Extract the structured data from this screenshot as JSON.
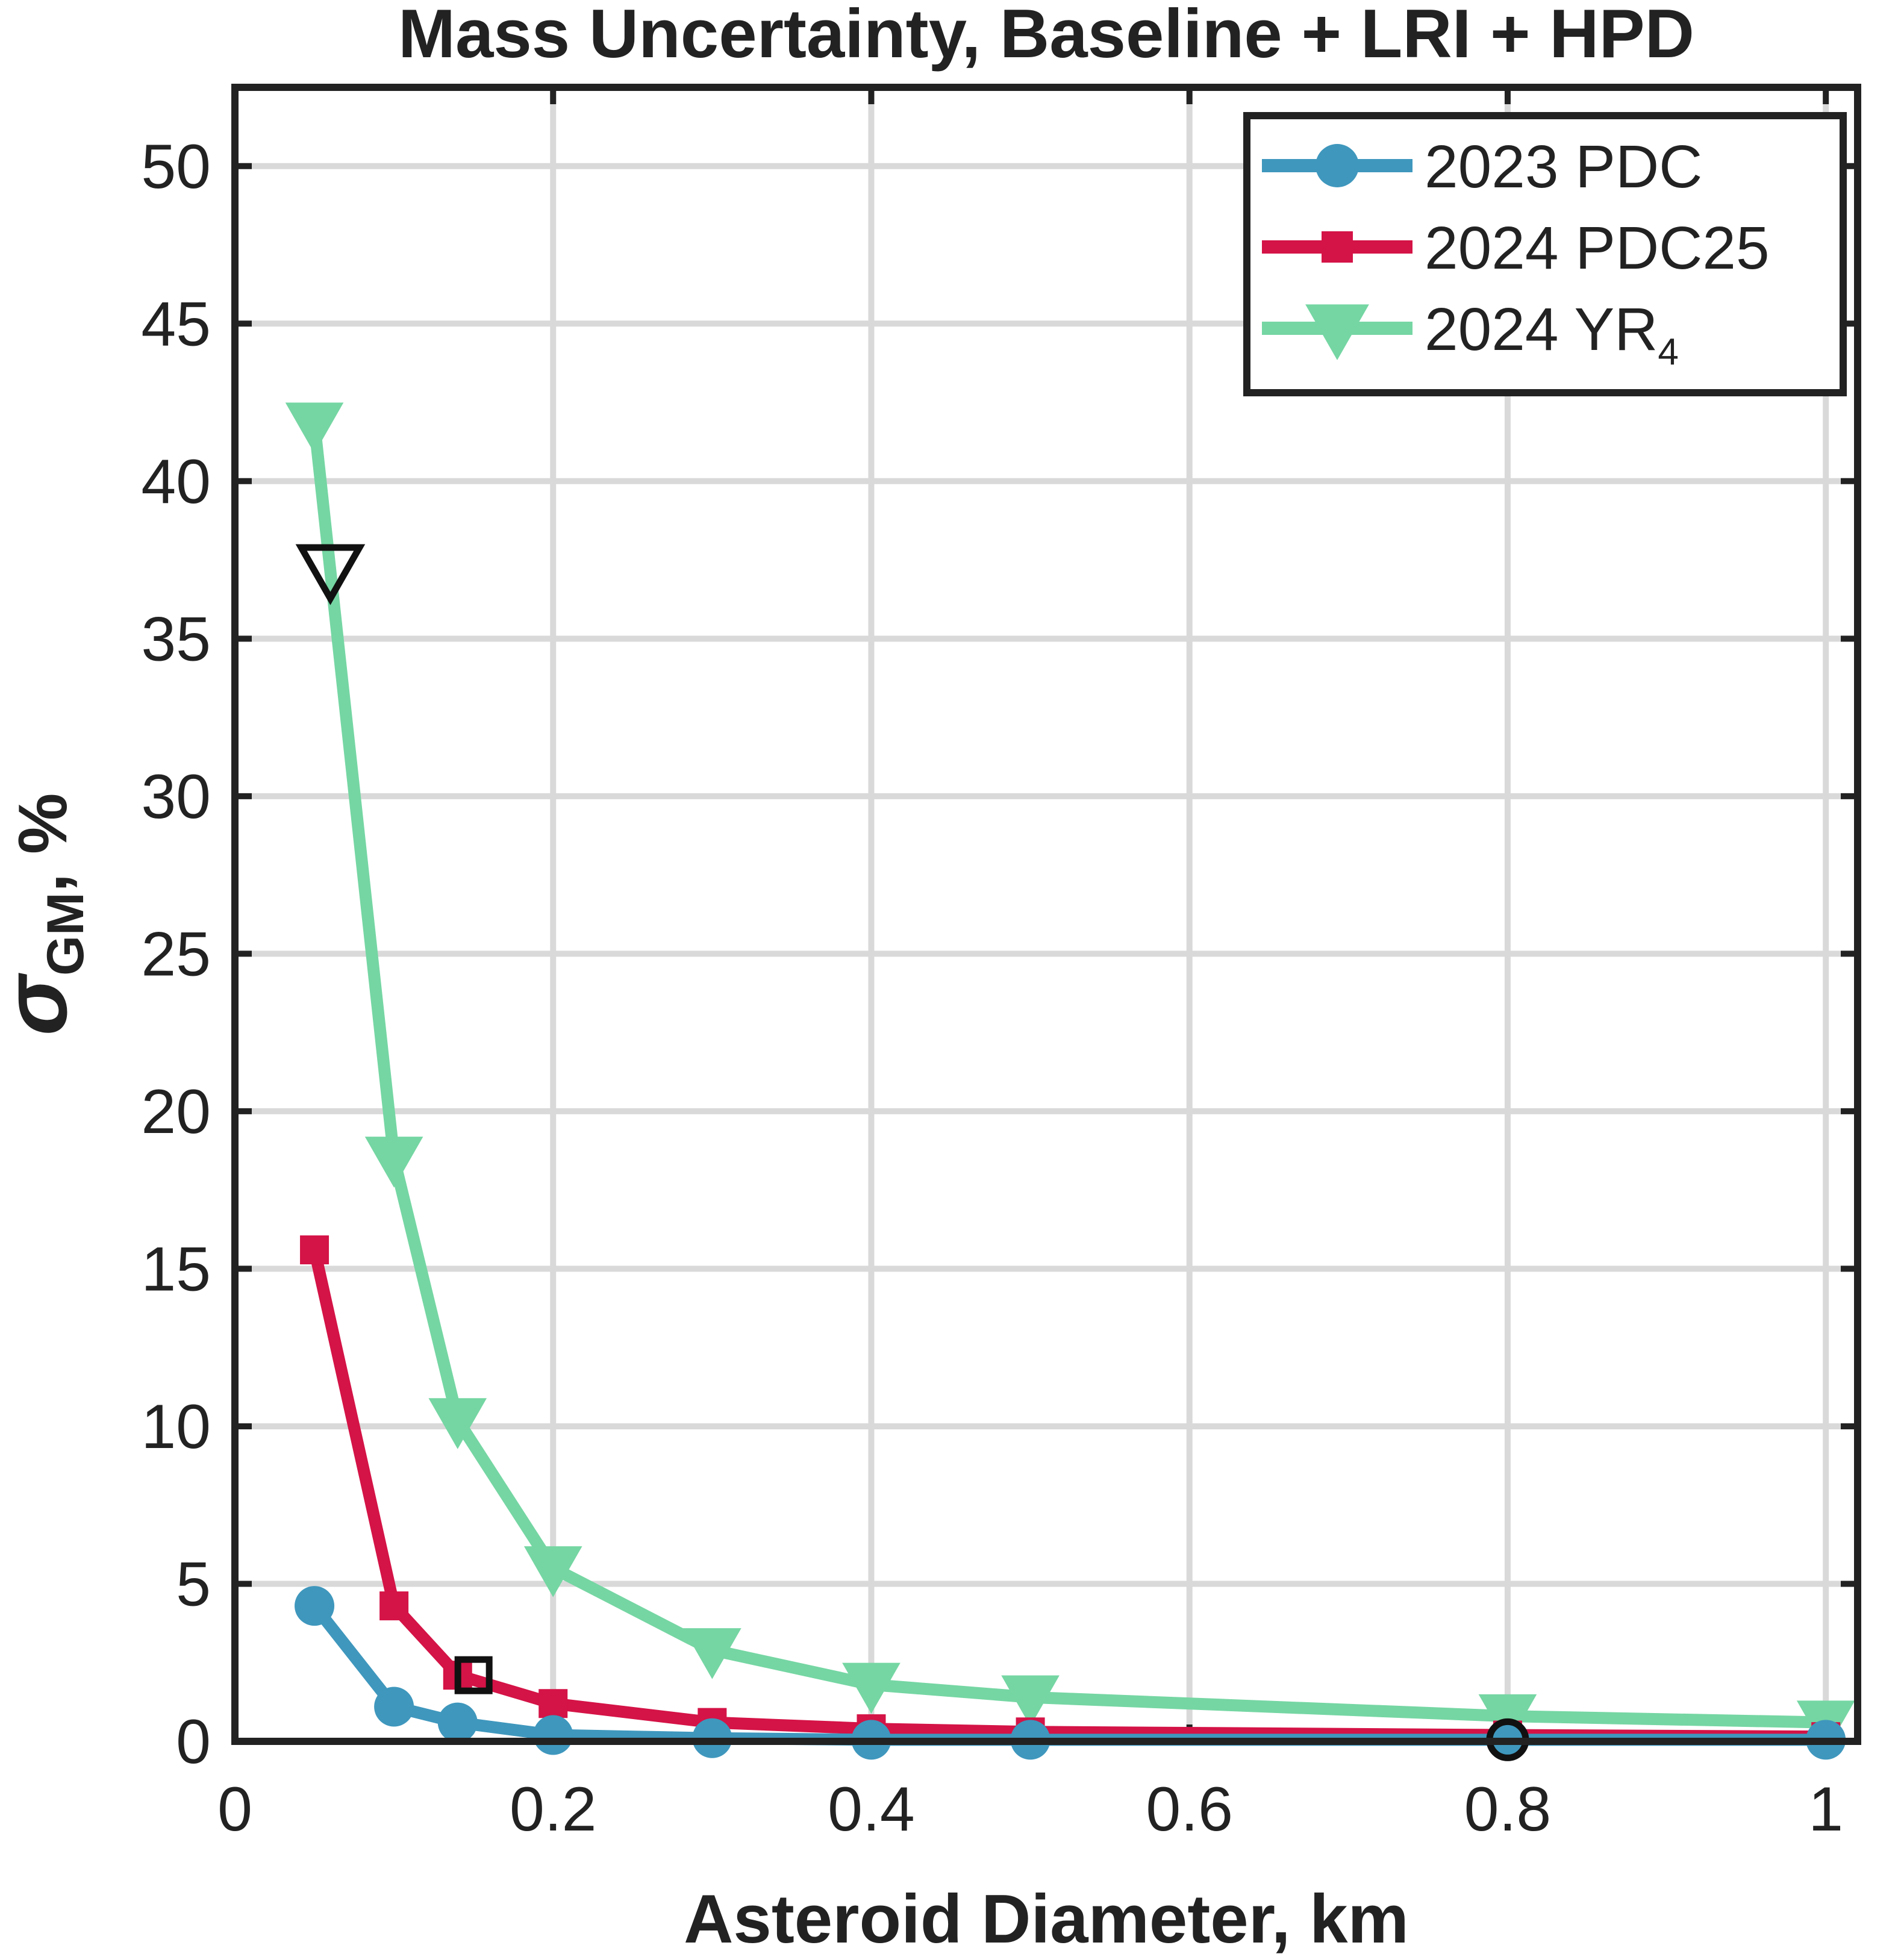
{
  "chart_data": {
    "type": "line",
    "title": "Mass Uncertainty, Baseline + LRI + HPD",
    "xlabel": "Asteroid Diameter, km",
    "ylabel": {
      "symbol": "σ",
      "subscript": "GM",
      "suffix": ",  %"
    },
    "xlim": [
      0,
      1.02
    ],
    "ylim": [
      0,
      52.5
    ],
    "xticks": [
      0,
      0.2,
      0.4,
      0.6,
      0.8,
      1
    ],
    "xtick_labels": [
      "0",
      "0.2",
      "0.4",
      "0.6",
      "0.8",
      "1"
    ],
    "yticks": [
      0,
      5,
      10,
      15,
      20,
      25,
      30,
      35,
      40,
      45,
      50
    ],
    "ytick_labels": [
      "0",
      "5",
      "10",
      "15",
      "20",
      "25",
      "30",
      "35",
      "40",
      "45",
      "50"
    ],
    "grid": true,
    "legend_position": "top-right",
    "series": [
      {
        "name": "2023 PDC",
        "color": "#3f97bd",
        "marker": "circle",
        "x": [
          0.05,
          0.1,
          0.14,
          0.2,
          0.3,
          0.4,
          0.5,
          0.8,
          1.0
        ],
        "y": [
          4.3,
          1.1,
          0.6,
          0.2,
          0.1,
          0.05,
          0.05,
          0.05,
          0.05
        ]
      },
      {
        "name": "2024 PDC25",
        "color": "#d41346",
        "marker": "square",
        "x": [
          0.05,
          0.1,
          0.14,
          0.2,
          0.3,
          0.4,
          0.5,
          0.8,
          1.0
        ],
        "y": [
          15.6,
          4.3,
          2.1,
          1.2,
          0.6,
          0.4,
          0.3,
          0.2,
          0.15
        ]
      },
      {
        "name": "2024  YR",
        "name_subscript": "4",
        "color": "#75d6a3",
        "marker": "triangle-down",
        "x": [
          0.05,
          0.1,
          0.14,
          0.2,
          0.3,
          0.4,
          0.5,
          0.8,
          1.0
        ],
        "y": [
          41.8,
          18.5,
          10.2,
          5.5,
          2.9,
          1.8,
          1.4,
          0.8,
          0.6
        ]
      }
    ],
    "highlighted_points": [
      {
        "series": "2024  YR",
        "marker": "triangle-down",
        "x": 0.06,
        "y": 37.2
      },
      {
        "series": "2024 PDC25",
        "marker": "square",
        "x": 0.15,
        "y": 2.1
      },
      {
        "series": "2023 PDC",
        "marker": "circle",
        "x": 0.8,
        "y": 0.05
      }
    ]
  }
}
